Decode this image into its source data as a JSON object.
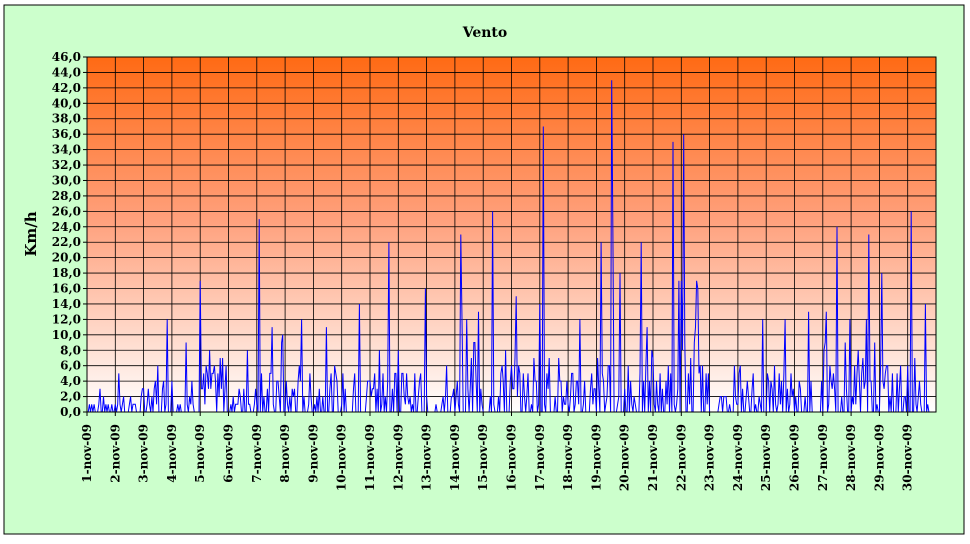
{
  "chart_data": {
    "type": "line",
    "title": "Vento",
    "xlabel": "",
    "ylabel": "Km/h",
    "ylim": [
      0,
      46
    ],
    "y_ticks": [
      "0,0",
      "2,0",
      "4,0",
      "6,0",
      "8,0",
      "10,0",
      "12,0",
      "14,0",
      "16,0",
      "18,0",
      "20,0",
      "22,0",
      "24,0",
      "26,0",
      "28,0",
      "30,0",
      "32,0",
      "34,0",
      "36,0",
      "38,0",
      "40,0",
      "42,0",
      "44,0",
      "46,0"
    ],
    "categories": [
      "1-nov-09",
      "2-nov-09",
      "3-nov-09",
      "4-nov-09",
      "5-nov-09",
      "6-nov-09",
      "7-nov-09",
      "8-nov-09",
      "9-nov-09",
      "10-nov-09",
      "11-nov-09",
      "12-nov-09",
      "13-nov-09",
      "14-nov-09",
      "15-nov-09",
      "16-nov-09",
      "17-nov-09",
      "18-nov-09",
      "19-nov-09",
      "20-nov-09",
      "21-nov-09",
      "22-nov-09",
      "23-nov-09",
      "24-nov-09",
      "25-nov-09",
      "26-nov-09",
      "27-nov-09",
      "28-nov-09",
      "29-nov-09",
      "30-nov-09"
    ],
    "daily_max": [
      3,
      5,
      12,
      9,
      17,
      8,
      25,
      12,
      11,
      14,
      22,
      16,
      6,
      23,
      26,
      15,
      37,
      12,
      43,
      22,
      35,
      36,
      6,
      12,
      12,
      13,
      24,
      23,
      18,
      26
    ],
    "grid": true,
    "legend": "none",
    "colors": {
      "series": "#0000ff",
      "plot_top": "#ff6a14",
      "plot_bottom": "#ffffff",
      "background": "#ccffcc",
      "gridline": "#000000"
    }
  }
}
